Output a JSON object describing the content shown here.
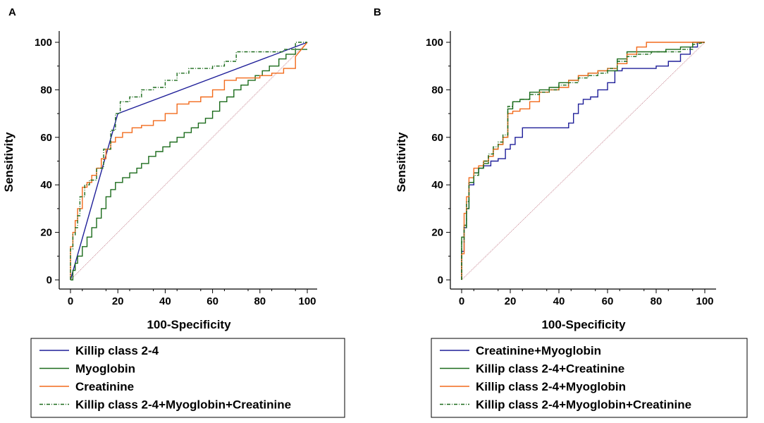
{
  "chart_data": [
    {
      "panel": "A",
      "type": "line",
      "xlabel": "100-Specificity",
      "ylabel": "Sensitivity",
      "xlim": [
        0,
        100
      ],
      "ylim": [
        0,
        100
      ],
      "xticks": [
        0,
        20,
        40,
        60,
        80,
        100
      ],
      "yticks": [
        0,
        20,
        40,
        60,
        80,
        100
      ],
      "reference_line": {
        "x": [
          0,
          100
        ],
        "y": [
          0,
          100
        ],
        "color": "#c98a96"
      },
      "series": [
        {
          "name": "Killip class 2-4",
          "color": "#1f1f99",
          "style": "solid",
          "x": [
            0,
            20,
            100
          ],
          "y": [
            0,
            70,
            100
          ]
        },
        {
          "name": "Myoglobin",
          "color": "#1b6b1b",
          "style": "solid",
          "x": [
            0,
            1,
            1,
            2,
            2,
            3,
            3,
            5,
            5,
            7,
            7,
            9,
            9,
            11,
            11,
            13,
            13,
            15,
            15,
            17,
            17,
            19,
            19,
            22,
            22,
            25,
            25,
            28,
            28,
            30,
            30,
            33,
            33,
            36,
            36,
            39,
            39,
            42,
            42,
            45,
            45,
            48,
            48,
            51,
            51,
            54,
            54,
            57,
            57,
            60,
            60,
            63,
            63,
            66,
            66,
            69,
            69,
            72,
            72,
            75,
            75,
            78,
            78,
            81,
            81,
            84,
            84,
            88,
            88,
            91,
            91,
            95,
            95,
            100
          ],
          "y": [
            0,
            0,
            4,
            4,
            7,
            7,
            10,
            10,
            14,
            14,
            18,
            18,
            22,
            22,
            26,
            26,
            30,
            30,
            35,
            35,
            38,
            38,
            41,
            41,
            43,
            43,
            45,
            45,
            47,
            47,
            49,
            49,
            52,
            52,
            54,
            54,
            56,
            56,
            58,
            58,
            60,
            60,
            62,
            62,
            64,
            64,
            66,
            66,
            68,
            68,
            71,
            71,
            75,
            75,
            77,
            77,
            80,
            80,
            82,
            82,
            84,
            84,
            86,
            86,
            88,
            88,
            90,
            90,
            93,
            93,
            95,
            95,
            97,
            97
          ]
        },
        {
          "name": "Creatinine",
          "color": "#f26a1b",
          "style": "solid",
          "x": [
            0,
            0,
            1,
            1,
            2,
            2,
            3,
            3,
            5,
            5,
            7,
            7,
            9,
            9,
            11,
            11,
            13,
            13,
            15,
            15,
            17,
            17,
            19,
            19,
            22,
            22,
            26,
            26,
            30,
            30,
            35,
            35,
            40,
            40,
            45,
            45,
            50,
            50,
            55,
            55,
            60,
            60,
            65,
            65,
            70,
            70,
            75,
            75,
            80,
            80,
            85,
            85,
            90,
            90,
            95,
            95,
            100
          ],
          "y": [
            0,
            14,
            14,
            20,
            20,
            25,
            25,
            30,
            30,
            39,
            39,
            41,
            41,
            44,
            44,
            47,
            47,
            51,
            51,
            55,
            55,
            58,
            58,
            60,
            60,
            62,
            62,
            64,
            64,
            65,
            65,
            67,
            67,
            70,
            70,
            74,
            74,
            75,
            75,
            77,
            77,
            80,
            80,
            84,
            84,
            85,
            85,
            85,
            85,
            86,
            86,
            87,
            87,
            89,
            89,
            94,
            100
          ]
        },
        {
          "name": "Killip class 2-4+Myoglobin+Creatinine",
          "color": "#1b6b1b",
          "style": "dashdot",
          "x": [
            0,
            0,
            1,
            1,
            2,
            2,
            3,
            3,
            4,
            4,
            6,
            6,
            8,
            8,
            11,
            11,
            14,
            14,
            17,
            17,
            19,
            19,
            21,
            21,
            25,
            25,
            30,
            30,
            35,
            35,
            40,
            40,
            45,
            45,
            50,
            50,
            55,
            55,
            60,
            60,
            65,
            65,
            70,
            70,
            75,
            75,
            80,
            80,
            85,
            85,
            90,
            90,
            95,
            95,
            100
          ],
          "y": [
            0,
            13,
            13,
            19,
            19,
            22,
            22,
            27,
            27,
            35,
            35,
            40,
            40,
            42,
            42,
            47,
            47,
            55,
            55,
            63,
            63,
            70,
            70,
            75,
            75,
            77,
            77,
            80,
            80,
            81,
            81,
            84,
            84,
            87,
            87,
            89,
            89,
            89,
            89,
            90,
            90,
            92,
            92,
            96,
            96,
            96,
            96,
            96,
            96,
            96,
            96,
            97,
            97,
            100,
            100
          ]
        }
      ],
      "legend": [
        "Killip class 2-4",
        "Myoglobin",
        "Creatinine",
        "Killip class 2-4+Myoglobin+Creatinine"
      ]
    },
    {
      "panel": "B",
      "type": "line",
      "xlabel": "100-Specificity",
      "ylabel": "Sensitivity",
      "xlim": [
        0,
        100
      ],
      "ylim": [
        0,
        100
      ],
      "xticks": [
        0,
        20,
        40,
        60,
        80,
        100
      ],
      "yticks": [
        0,
        20,
        40,
        60,
        80,
        100
      ],
      "reference_line": {
        "x": [
          0,
          100
        ],
        "y": [
          0,
          100
        ],
        "color": "#c98a96"
      },
      "series": [
        {
          "name": "Creatinine+Myoglobin",
          "color": "#1f1f99",
          "style": "solid",
          "x": [
            0,
            0,
            1,
            1,
            2,
            2,
            3,
            3,
            5,
            5,
            7,
            7,
            9,
            9,
            12,
            12,
            15,
            15,
            18,
            18,
            20,
            20,
            22,
            22,
            25,
            25,
            30,
            30,
            35,
            35,
            40,
            40,
            44,
            44,
            46,
            46,
            48,
            48,
            50,
            50,
            53,
            53,
            56,
            56,
            60,
            60,
            63,
            63,
            66,
            66,
            70,
            70,
            75,
            75,
            80,
            80,
            85,
            85,
            90,
            90,
            94,
            94,
            97,
            97,
            100
          ],
          "y": [
            0,
            12,
            12,
            22,
            22,
            30,
            30,
            40,
            40,
            45,
            45,
            47,
            47,
            48,
            48,
            50,
            50,
            51,
            51,
            55,
            55,
            57,
            57,
            60,
            60,
            64,
            64,
            64,
            64,
            64,
            64,
            64,
            64,
            66,
            66,
            70,
            70,
            74,
            74,
            76,
            76,
            77,
            77,
            80,
            80,
            83,
            83,
            88,
            88,
            89,
            89,
            89,
            89,
            89,
            89,
            90,
            90,
            92,
            92,
            95,
            95,
            98,
            98,
            100,
            100
          ]
        },
        {
          "name": "Killip class 2-4+Creatinine",
          "color": "#1b6b1b",
          "style": "solid",
          "x": [
            0,
            0,
            1,
            1,
            2,
            2,
            3,
            3,
            5,
            5,
            7,
            7,
            9,
            9,
            11,
            11,
            13,
            13,
            15,
            15,
            17,
            17,
            19,
            19,
            21,
            21,
            24,
            24,
            28,
            28,
            32,
            32,
            36,
            36,
            40,
            40,
            44,
            44,
            48,
            48,
            52,
            52,
            56,
            56,
            60,
            60,
            64,
            64,
            68,
            68,
            72,
            72,
            78,
            78,
            84,
            84,
            90,
            90,
            95,
            95,
            100
          ],
          "y": [
            0,
            18,
            18,
            23,
            23,
            30,
            30,
            41,
            41,
            45,
            45,
            47,
            47,
            49,
            49,
            52,
            52,
            55,
            55,
            57,
            57,
            60,
            60,
            72,
            72,
            75,
            75,
            76,
            76,
            79,
            79,
            80,
            80,
            81,
            81,
            83,
            83,
            84,
            84,
            86,
            86,
            87,
            87,
            88,
            88,
            88,
            88,
            93,
            93,
            96,
            96,
            96,
            96,
            96,
            96,
            97,
            97,
            98,
            98,
            100,
            100
          ]
        },
        {
          "name": "Killip class 2-4+Myoglobin",
          "color": "#f26a1b",
          "style": "solid",
          "x": [
            0,
            0,
            1,
            1,
            2,
            2,
            3,
            3,
            5,
            5,
            7,
            7,
            9,
            9,
            11,
            11,
            13,
            13,
            15,
            15,
            17,
            17,
            19,
            19,
            21,
            21,
            24,
            24,
            28,
            28,
            32,
            32,
            36,
            36,
            40,
            40,
            44,
            44,
            48,
            48,
            52,
            52,
            56,
            56,
            60,
            60,
            64,
            64,
            68,
            68,
            72,
            72,
            76,
            76,
            80,
            80,
            85,
            85,
            100
          ],
          "y": [
            0,
            11,
            11,
            28,
            28,
            35,
            35,
            43,
            43,
            47,
            47,
            48,
            48,
            50,
            50,
            52,
            52,
            55,
            55,
            57,
            57,
            60,
            60,
            70,
            70,
            71,
            71,
            72,
            72,
            75,
            75,
            79,
            79,
            80,
            80,
            81,
            81,
            84,
            84,
            86,
            86,
            87,
            87,
            88,
            88,
            89,
            89,
            91,
            91,
            95,
            95,
            98,
            98,
            100,
            100,
            100,
            100,
            100,
            100
          ]
        },
        {
          "name": "Killip class 2-4+Myoglobin+Creatinine",
          "color": "#1b6b1b",
          "style": "dashdot",
          "x": [
            0,
            0,
            1,
            1,
            2,
            2,
            3,
            3,
            5,
            5,
            7,
            7,
            9,
            9,
            11,
            11,
            13,
            13,
            15,
            15,
            17,
            17,
            19,
            19,
            21,
            21,
            24,
            24,
            28,
            28,
            32,
            32,
            36,
            36,
            40,
            40,
            44,
            44,
            48,
            48,
            52,
            52,
            56,
            56,
            60,
            60,
            64,
            64,
            68,
            68,
            72,
            72,
            78,
            78,
            84,
            84,
            90,
            90,
            95,
            95,
            100
          ],
          "y": [
            0,
            16,
            16,
            22,
            22,
            33,
            33,
            41,
            41,
            44,
            44,
            47,
            47,
            50,
            50,
            53,
            53,
            56,
            56,
            58,
            58,
            61,
            61,
            73,
            73,
            75,
            75,
            76,
            76,
            78,
            78,
            79,
            79,
            80,
            80,
            82,
            82,
            83,
            83,
            85,
            85,
            86,
            86,
            87,
            87,
            89,
            89,
            92,
            92,
            94,
            94,
            95,
            95,
            96,
            96,
            96,
            96,
            97,
            97,
            99,
            100
          ]
        }
      ],
      "legend": [
        "Creatinine+Myoglobin",
        "Killip class 2-4+Creatinine",
        "Killip class 2-4+Myoglobin",
        "Killip class 2-4+Myoglobin+Creatinine"
      ]
    }
  ]
}
